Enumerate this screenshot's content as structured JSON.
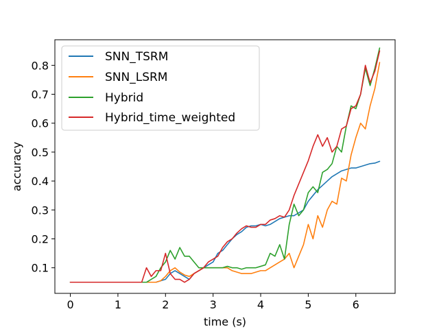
{
  "chart_data": {
    "type": "line",
    "title": "",
    "xlabel": "time (s)",
    "ylabel": "accuracy",
    "xlim": [
      -0.325,
      6.825
    ],
    "ylim": [
      0.0115,
      0.8885
    ],
    "xticks": [
      0,
      1,
      2,
      3,
      4,
      5,
      6
    ],
    "yticks": [
      0.1,
      0.2,
      0.3,
      0.4,
      0.5,
      0.6,
      0.7,
      0.8
    ],
    "xtick_labels": [
      "0",
      "1",
      "2",
      "3",
      "4",
      "5",
      "6"
    ],
    "ytick_labels": [
      "0.1",
      "0.2",
      "0.3",
      "0.4",
      "0.5",
      "0.6",
      "0.7",
      "0.8"
    ],
    "grid": false,
    "legend_position": "top-left",
    "series": [
      {
        "name": "SNN_TSRM",
        "color": "#1f77b4",
        "x": [
          0,
          1.5,
          1.6,
          1.8,
          1.9,
          2.0,
          2.1,
          2.2,
          2.3,
          2.4,
          2.5,
          2.6,
          2.7,
          2.8,
          2.9,
          3.0,
          3.1,
          3.2,
          3.3,
          3.4,
          3.5,
          3.6,
          3.7,
          3.8,
          3.9,
          4.0,
          4.1,
          4.2,
          4.3,
          4.4,
          4.5,
          4.6,
          4.7,
          4.8,
          4.9,
          5.0,
          5.1,
          5.2,
          5.3,
          5.4,
          5.5,
          5.6,
          5.7,
          5.8,
          5.9,
          6.0,
          6.1,
          6.2,
          6.3,
          6.4,
          6.5
        ],
        "y": [
          0.05,
          0.05,
          0.05,
          0.05,
          0.055,
          0.06,
          0.08,
          0.09,
          0.08,
          0.07,
          0.06,
          0.08,
          0.09,
          0.1,
          0.11,
          0.12,
          0.15,
          0.16,
          0.18,
          0.2,
          0.215,
          0.225,
          0.24,
          0.245,
          0.245,
          0.25,
          0.245,
          0.25,
          0.26,
          0.27,
          0.275,
          0.28,
          0.28,
          0.29,
          0.3,
          0.33,
          0.35,
          0.37,
          0.385,
          0.4,
          0.415,
          0.425,
          0.435,
          0.44,
          0.445,
          0.445,
          0.45,
          0.455,
          0.46,
          0.462,
          0.468
        ]
      },
      {
        "name": "SNN_LSRM",
        "color": "#ff7f0e",
        "x": [
          0,
          1.5,
          1.6,
          1.8,
          1.9,
          2.0,
          2.1,
          2.2,
          2.3,
          2.4,
          2.5,
          2.6,
          2.7,
          2.8,
          2.9,
          3.0,
          3.1,
          3.2,
          3.3,
          3.4,
          3.5,
          3.6,
          3.7,
          3.8,
          3.9,
          4.0,
          4.1,
          4.2,
          4.3,
          4.4,
          4.5,
          4.6,
          4.7,
          4.8,
          4.9,
          5.0,
          5.1,
          5.2,
          5.3,
          5.4,
          5.5,
          5.6,
          5.7,
          5.8,
          5.9,
          6.0,
          6.1,
          6.2,
          6.3,
          6.4,
          6.5
        ],
        "y": [
          0.05,
          0.05,
          0.05,
          0.05,
          0.055,
          0.07,
          0.09,
          0.1,
          0.085,
          0.075,
          0.07,
          0.08,
          0.09,
          0.1,
          0.1,
          0.1,
          0.1,
          0.1,
          0.1,
          0.09,
          0.085,
          0.08,
          0.08,
          0.08,
          0.085,
          0.09,
          0.09,
          0.1,
          0.11,
          0.12,
          0.13,
          0.15,
          0.1,
          0.14,
          0.18,
          0.25,
          0.2,
          0.28,
          0.24,
          0.3,
          0.33,
          0.32,
          0.41,
          0.4,
          0.49,
          0.55,
          0.6,
          0.58,
          0.66,
          0.72,
          0.81
        ]
      },
      {
        "name": "Hybrid",
        "color": "#2ca02c",
        "x": [
          0,
          1.5,
          1.6,
          1.8,
          1.9,
          2.0,
          2.1,
          2.2,
          2.3,
          2.4,
          2.5,
          2.6,
          2.7,
          2.8,
          2.9,
          3.0,
          3.1,
          3.2,
          3.3,
          3.4,
          3.5,
          3.6,
          3.7,
          3.8,
          3.9,
          4.0,
          4.1,
          4.2,
          4.3,
          4.4,
          4.5,
          4.6,
          4.7,
          4.8,
          4.9,
          5.0,
          5.1,
          5.2,
          5.3,
          5.4,
          5.5,
          5.6,
          5.7,
          5.8,
          5.9,
          6.0,
          6.1,
          6.2,
          6.3,
          6.4,
          6.5
        ],
        "y": [
          0.05,
          0.05,
          0.05,
          0.07,
          0.1,
          0.12,
          0.16,
          0.13,
          0.17,
          0.14,
          0.14,
          0.12,
          0.1,
          0.1,
          0.1,
          0.1,
          0.1,
          0.1,
          0.105,
          0.1,
          0.1,
          0.095,
          0.1,
          0.1,
          0.1,
          0.105,
          0.11,
          0.15,
          0.14,
          0.18,
          0.13,
          0.25,
          0.32,
          0.28,
          0.3,
          0.36,
          0.38,
          0.36,
          0.43,
          0.44,
          0.46,
          0.52,
          0.5,
          0.59,
          0.66,
          0.65,
          0.7,
          0.79,
          0.73,
          0.79,
          0.86
        ]
      },
      {
        "name": "Hybrid_time_weighted",
        "color": "#d62728",
        "x": [
          0,
          1.5,
          1.6,
          1.7,
          1.8,
          1.9,
          2.0,
          2.1,
          2.2,
          2.3,
          2.4,
          2.5,
          2.6,
          2.7,
          2.8,
          2.9,
          3.0,
          3.1,
          3.2,
          3.3,
          3.4,
          3.5,
          3.6,
          3.7,
          3.8,
          3.9,
          4.0,
          4.1,
          4.2,
          4.3,
          4.4,
          4.5,
          4.6,
          4.7,
          4.8,
          4.9,
          5.0,
          5.1,
          5.2,
          5.3,
          5.4,
          5.5,
          5.6,
          5.7,
          5.8,
          5.9,
          6.0,
          6.1,
          6.2,
          6.3,
          6.4,
          6.5
        ],
        "y": [
          0.05,
          0.05,
          0.1,
          0.07,
          0.09,
          0.09,
          0.15,
          0.08,
          0.06,
          0.06,
          0.05,
          0.06,
          0.08,
          0.09,
          0.1,
          0.12,
          0.13,
          0.14,
          0.17,
          0.19,
          0.2,
          0.22,
          0.235,
          0.245,
          0.24,
          0.24,
          0.25,
          0.25,
          0.265,
          0.27,
          0.28,
          0.275,
          0.3,
          0.35,
          0.39,
          0.43,
          0.47,
          0.52,
          0.56,
          0.52,
          0.55,
          0.5,
          0.52,
          0.58,
          0.59,
          0.65,
          0.66,
          0.7,
          0.8,
          0.74,
          0.78,
          0.85
        ]
      }
    ]
  }
}
